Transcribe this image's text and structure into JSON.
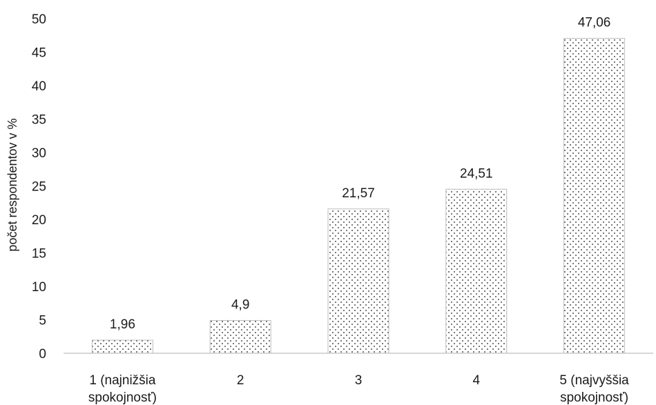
{
  "chart_data": {
    "type": "bar",
    "categories": [
      [
        "1 (najnižšia",
        "spokojnosť)"
      ],
      [
        "2"
      ],
      [
        "3"
      ],
      [
        "4"
      ],
      [
        "5 (najvyššia",
        "spokojnosť)"
      ]
    ],
    "values": [
      1.96,
      4.9,
      21.57,
      24.51,
      47.06
    ],
    "data_labels": [
      "1,96",
      "4,9",
      "21,57",
      "24,51",
      "47,06"
    ],
    "title": "",
    "xlabel": "",
    "ylabel": "počet respondentov v %",
    "ylim": [
      0,
      50
    ],
    "yticks": [
      0,
      5,
      10,
      15,
      20,
      25,
      30,
      35,
      40,
      45,
      50
    ],
    "grid": false,
    "legend": "none",
    "bar_fill": "dotted pattern",
    "colors": {
      "bar_dots": "#1a1a1a",
      "bar_background": "#ffffff",
      "bar_edge": "#bdbdbd",
      "axis": "#bfbfbf"
    }
  }
}
